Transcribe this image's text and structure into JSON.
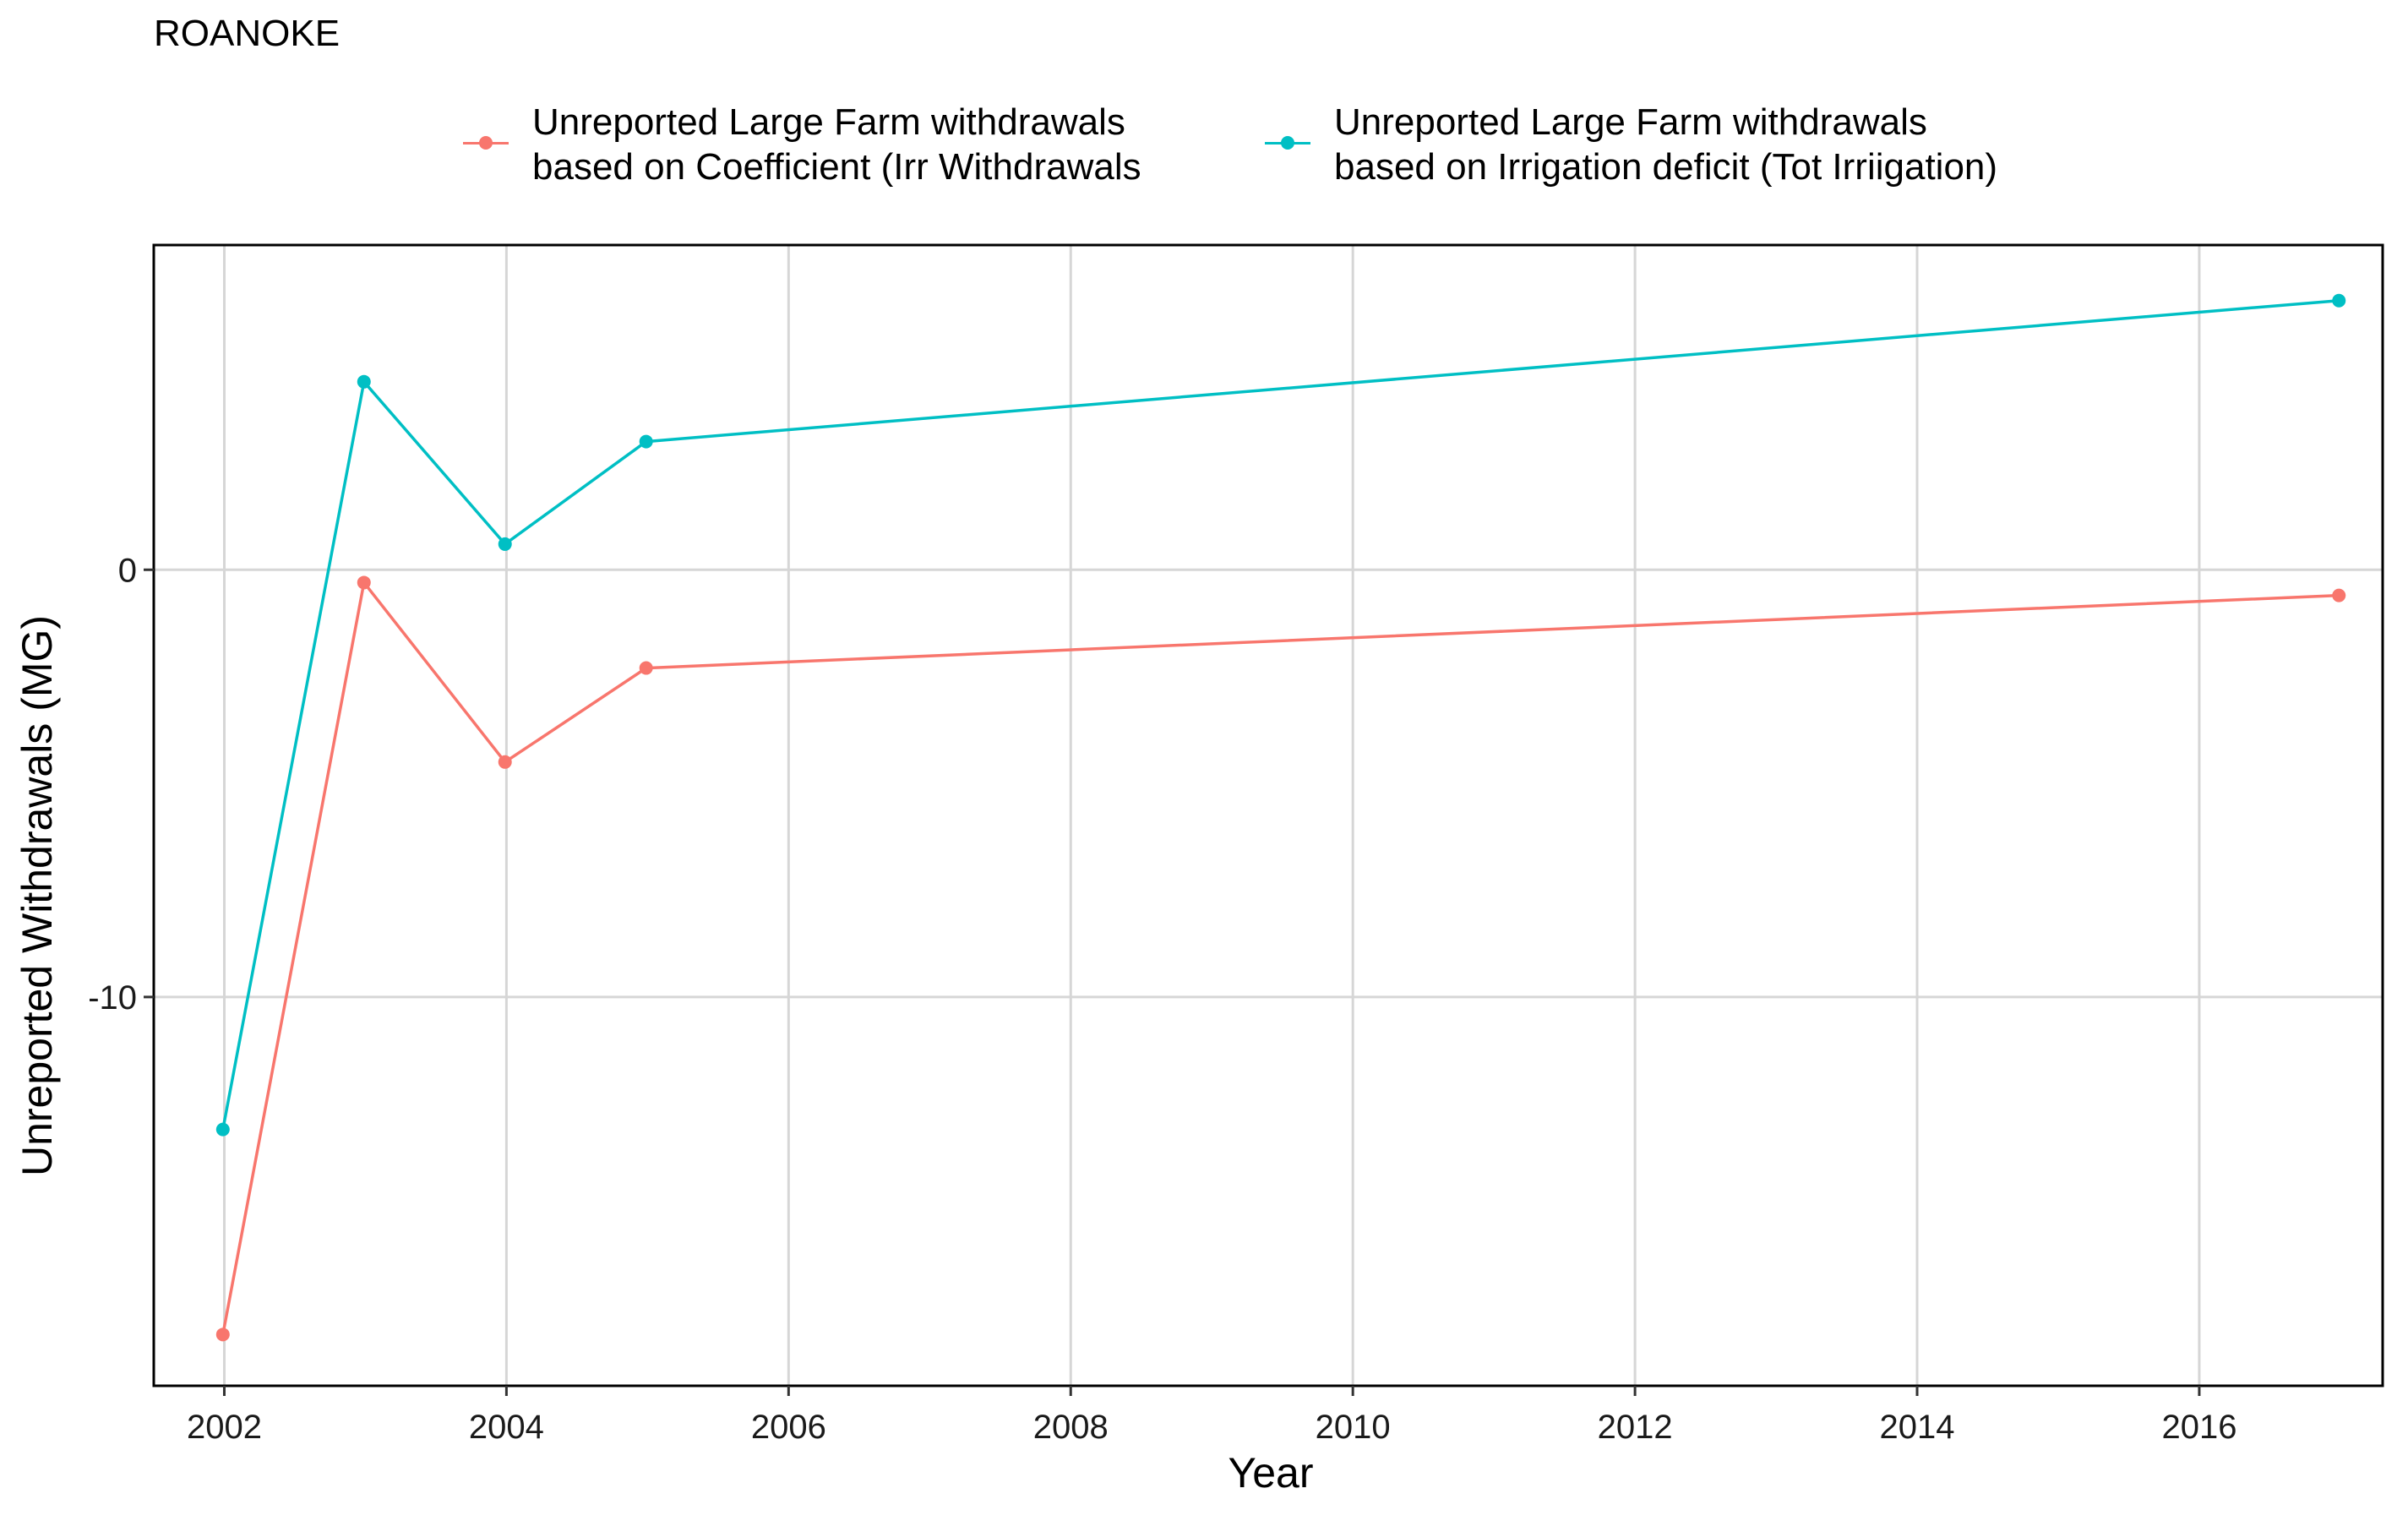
{
  "chart_data": {
    "type": "line",
    "title": "ROANOKE",
    "xlabel": "Year",
    "ylabel": "Unreported Withdrawals (MG)",
    "xlim": [
      2001.5,
      2017.3
    ],
    "ylim": [
      -19.1,
      7.6
    ],
    "x_ticks": [
      "2002",
      "2004",
      "2006",
      "2008",
      "2010",
      "2012",
      "2014",
      "2016"
    ],
    "x_tick_values": [
      2002,
      2004,
      2006,
      2008,
      2010,
      2012,
      2014,
      2016
    ],
    "y_ticks": [
      "-10",
      "0"
    ],
    "y_tick_values": [
      -10,
      0
    ],
    "grid": true,
    "legend_position": "top",
    "series": [
      {
        "name": "Unreported Large Farm withdrawals based on Coefficient (Irr Withdrawals",
        "name_lines": [
          "Unreported Large Farm withdrawals",
          "based on Coefficient (Irr Withdrawals"
        ],
        "color": "#F8766D",
        "x": [
          2001.99,
          2002.99,
          2003.99,
          2004.99,
          2016.99
        ],
        "y": [
          -17.9,
          -0.3,
          -4.5,
          -2.3,
          -0.6
        ]
      },
      {
        "name": "Unreported Large Farm withdrawals based on Irrigation deficit (Tot Irriigation)",
        "name_lines": [
          "Unreported Large Farm withdrawals",
          "based on Irrigation deficit (Tot Irriigation)"
        ],
        "color": "#00BFC4",
        "x": [
          2001.99,
          2002.99,
          2003.99,
          2004.99,
          2016.99
        ],
        "y": [
          -13.1,
          4.4,
          0.6,
          3.0,
          6.3
        ]
      }
    ]
  }
}
